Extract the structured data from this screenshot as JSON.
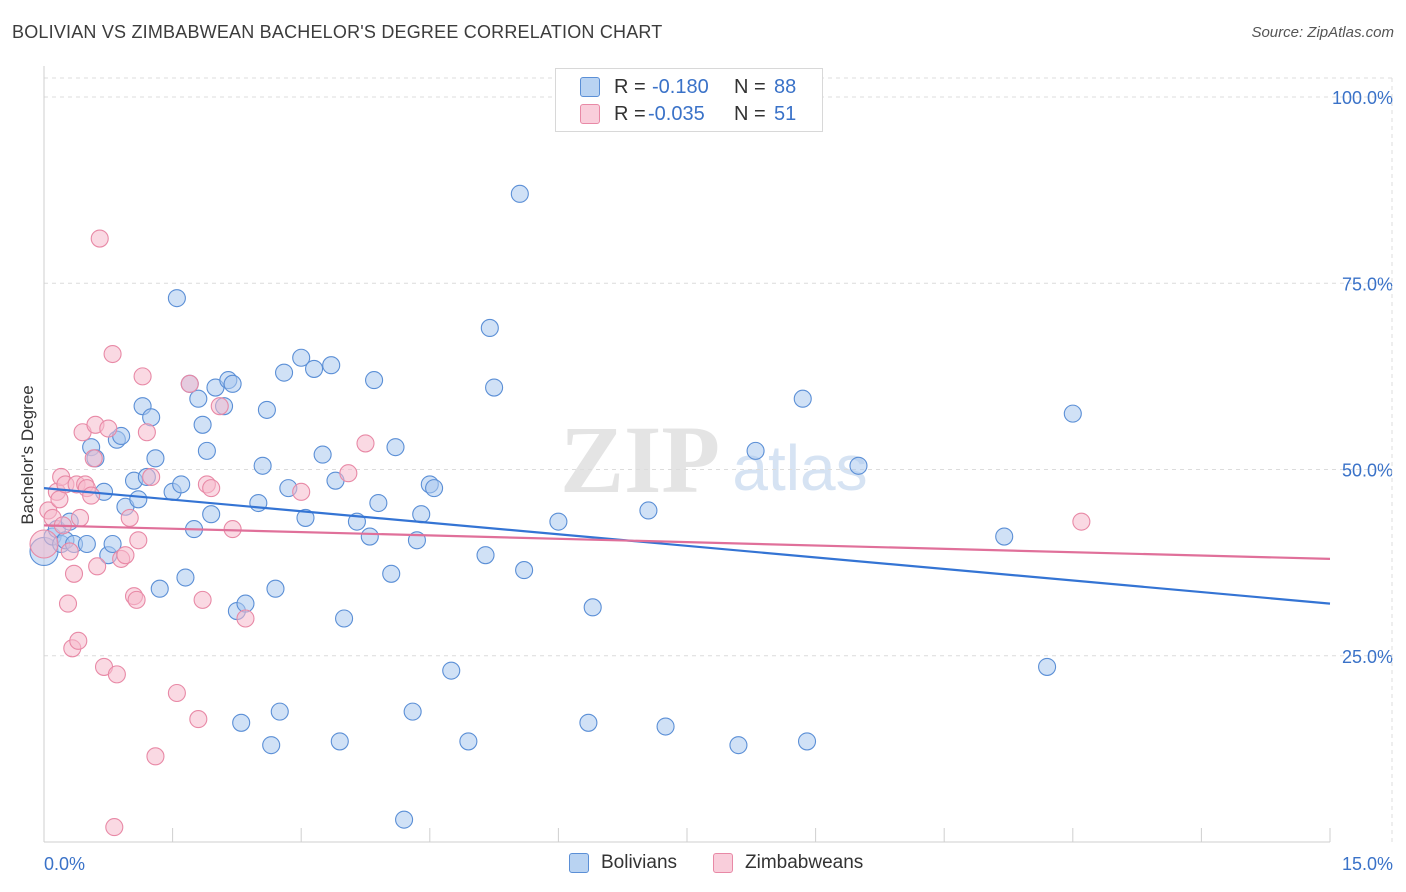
{
  "title": "BOLIVIAN VS ZIMBABWEAN BACHELOR'S DEGREE CORRELATION CHART",
  "source": "Source: ZipAtlas.com",
  "watermark": {
    "zip": "ZIP",
    "atlas": "atlas"
  },
  "legend_top": {
    "rows": [
      {
        "r_label": "R =",
        "r_value": "-0.180",
        "n_label": "N =",
        "n_value": "88"
      },
      {
        "r_label": "R =",
        "r_value": "-0.035",
        "n_label": "N =",
        "n_value": "51"
      }
    ]
  },
  "colors": {
    "blue_fill": "#a9c8ee",
    "blue_stroke": "#5b8fd6",
    "blue_line": "#3474d4",
    "pink_fill": "#f6b9cc",
    "pink_stroke": "#e889a6",
    "pink_line": "#e0709a",
    "grid": "#dcdcdc",
    "tick_text": "#3a72c8"
  },
  "chart_data": {
    "type": "scatter",
    "title": "BOLIVIAN VS ZIMBABWEAN BACHELOR'S DEGREE CORRELATION CHART",
    "xlabel": "",
    "ylabel": "Bachelor's Degree",
    "xlim": [
      0,
      15
    ],
    "ylim": [
      0,
      100
    ],
    "x_tick_labels": [
      "0.0%",
      "15.0%"
    ],
    "y_ticks": [
      25,
      50,
      75,
      100
    ],
    "y_tick_labels": [
      "25.0%",
      "50.0%",
      "75.0%",
      "100.0%"
    ],
    "legend": [
      "Bolivians",
      "Zimbabweans"
    ],
    "series": [
      {
        "name": "Bolivians",
        "r": -0.18,
        "n": 88,
        "trend": {
          "x": [
            0,
            15
          ],
          "y": [
            47.5,
            32.0
          ]
        },
        "points": [
          [
            0.0,
            39.0
          ],
          [
            0.1,
            41.0
          ],
          [
            0.15,
            42.0
          ],
          [
            0.2,
            40.0
          ],
          [
            0.25,
            40.5
          ],
          [
            0.3,
            43.0
          ],
          [
            0.35,
            40.0
          ],
          [
            0.5,
            40.0
          ],
          [
            0.55,
            53.0
          ],
          [
            0.6,
            51.5
          ],
          [
            0.7,
            47.0
          ],
          [
            0.75,
            38.5
          ],
          [
            0.8,
            40.0
          ],
          [
            0.85,
            54.0
          ],
          [
            0.9,
            54.5
          ],
          [
            0.95,
            45.0
          ],
          [
            1.05,
            48.5
          ],
          [
            1.1,
            46.0
          ],
          [
            1.15,
            58.5
          ],
          [
            1.2,
            49.0
          ],
          [
            1.25,
            57.0
          ],
          [
            1.3,
            51.5
          ],
          [
            1.35,
            34.0
          ],
          [
            1.5,
            47.0
          ],
          [
            1.55,
            73.0
          ],
          [
            1.6,
            48.0
          ],
          [
            1.65,
            35.5
          ],
          [
            1.7,
            61.5
          ],
          [
            1.75,
            42.0
          ],
          [
            1.8,
            59.5
          ],
          [
            1.85,
            56.0
          ],
          [
            1.9,
            52.5
          ],
          [
            1.95,
            44.0
          ],
          [
            2.0,
            61.0
          ],
          [
            2.1,
            58.5
          ],
          [
            2.15,
            62.0
          ],
          [
            2.2,
            61.5
          ],
          [
            2.25,
            31.0
          ],
          [
            2.3,
            16.0
          ],
          [
            2.35,
            32.0
          ],
          [
            2.5,
            45.5
          ],
          [
            2.55,
            50.5
          ],
          [
            2.6,
            58.0
          ],
          [
            2.65,
            13.0
          ],
          [
            2.7,
            34.0
          ],
          [
            2.75,
            17.5
          ],
          [
            2.8,
            63.0
          ],
          [
            2.85,
            47.5
          ],
          [
            3.0,
            65.0
          ],
          [
            3.05,
            43.5
          ],
          [
            3.15,
            63.5
          ],
          [
            3.25,
            52.0
          ],
          [
            3.35,
            64.0
          ],
          [
            3.4,
            48.5
          ],
          [
            3.45,
            13.5
          ],
          [
            3.5,
            30.0
          ],
          [
            3.65,
            43.0
          ],
          [
            3.8,
            41.0
          ],
          [
            3.85,
            62.0
          ],
          [
            3.9,
            45.5
          ],
          [
            4.05,
            36.0
          ],
          [
            4.1,
            53.0
          ],
          [
            4.2,
            3.0
          ],
          [
            4.3,
            17.5
          ],
          [
            4.35,
            40.5
          ],
          [
            4.4,
            44.0
          ],
          [
            4.5,
            48.0
          ],
          [
            4.55,
            47.5
          ],
          [
            4.75,
            23.0
          ],
          [
            4.95,
            13.5
          ],
          [
            5.15,
            38.5
          ],
          [
            5.2,
            69.0
          ],
          [
            5.25,
            61.0
          ],
          [
            5.55,
            87.0
          ],
          [
            5.6,
            36.5
          ],
          [
            6.0,
            43.0
          ],
          [
            6.35,
            16.0
          ],
          [
            6.4,
            31.5
          ],
          [
            7.05,
            44.5
          ],
          [
            7.25,
            15.5
          ],
          [
            8.1,
            13.0
          ],
          [
            8.3,
            52.5
          ],
          [
            8.85,
            59.5
          ],
          [
            8.9,
            13.5
          ],
          [
            9.5,
            50.5
          ],
          [
            11.2,
            41.0
          ],
          [
            11.7,
            23.5
          ],
          [
            12.0,
            57.5
          ]
        ]
      },
      {
        "name": "Zimbabweans",
        "r": -0.035,
        "n": 51,
        "trend": {
          "x": [
            0,
            15
          ],
          "y": [
            42.5,
            38.0
          ]
        },
        "points": [
          [
            0.0,
            40.0
          ],
          [
            0.05,
            44.5
          ],
          [
            0.1,
            43.5
          ],
          [
            0.15,
            47.0
          ],
          [
            0.18,
            46.0
          ],
          [
            0.2,
            49.0
          ],
          [
            0.22,
            42.5
          ],
          [
            0.25,
            48.0
          ],
          [
            0.28,
            32.0
          ],
          [
            0.3,
            39.0
          ],
          [
            0.33,
            26.0
          ],
          [
            0.35,
            36.0
          ],
          [
            0.38,
            48.0
          ],
          [
            0.4,
            27.0
          ],
          [
            0.42,
            43.5
          ],
          [
            0.45,
            55.0
          ],
          [
            0.48,
            48.0
          ],
          [
            0.5,
            47.5
          ],
          [
            0.55,
            46.5
          ],
          [
            0.58,
            51.5
          ],
          [
            0.6,
            56.0
          ],
          [
            0.62,
            37.0
          ],
          [
            0.65,
            81.0
          ],
          [
            0.7,
            23.5
          ],
          [
            0.75,
            55.5
          ],
          [
            0.8,
            65.5
          ],
          [
            0.82,
            2.0
          ],
          [
            0.85,
            22.5
          ],
          [
            0.9,
            38.0
          ],
          [
            0.95,
            38.5
          ],
          [
            1.0,
            43.5
          ],
          [
            1.05,
            33.0
          ],
          [
            1.08,
            32.5
          ],
          [
            1.1,
            40.5
          ],
          [
            1.15,
            62.5
          ],
          [
            1.2,
            55.0
          ],
          [
            1.25,
            49.0
          ],
          [
            1.3,
            11.5
          ],
          [
            1.55,
            20.0
          ],
          [
            1.7,
            61.5
          ],
          [
            1.8,
            16.5
          ],
          [
            1.85,
            32.5
          ],
          [
            1.9,
            48.0
          ],
          [
            1.95,
            47.5
          ],
          [
            2.05,
            58.5
          ],
          [
            2.2,
            42.0
          ],
          [
            2.35,
            30.0
          ],
          [
            3.0,
            47.0
          ],
          [
            3.55,
            49.5
          ],
          [
            3.75,
            53.5
          ],
          [
            12.1,
            43.0
          ]
        ]
      }
    ]
  },
  "bottom_legend": {
    "items": [
      "Bolivians",
      "Zimbabweans"
    ]
  }
}
